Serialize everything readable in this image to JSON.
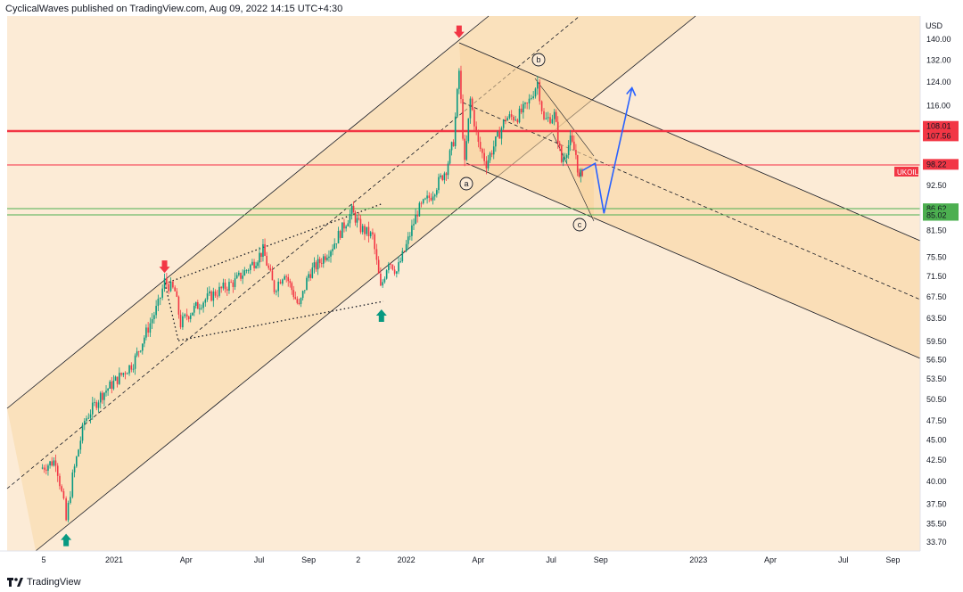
{
  "header": {
    "publisher_line": "CyclicalWaves published on TradingView.com, Aug 09, 2022 14:15 UTC+4:30"
  },
  "footer": {
    "brand": "TradingView",
    "logo_icon": "tradingview-logo-icon"
  },
  "colors": {
    "background": "#fcebd6",
    "channel_fill": "#f8d49e",
    "red_level": "#f23645",
    "light_red_level": "#f7525f",
    "green_level": "#4caf50",
    "projection_arrow": "#2962ff",
    "marker_up": "#089981",
    "marker_down": "#f23645",
    "candle_up": "#089981",
    "candle_down": "#f23645"
  },
  "chart_data": {
    "type": "candlestick",
    "title": "",
    "currency": "USD",
    "y_scale": "log",
    "ylim": [
      33.7,
      140.0
    ],
    "x_tick_labels": [
      "5",
      "2021",
      "Apr",
      "Jul",
      "Sep",
      "2",
      "2022",
      "Apr",
      "Jul",
      "Sep",
      "2023",
      "Apr",
      "Jul",
      "Sep"
    ],
    "y_tick_labels": [
      "140.00",
      "132.00",
      "124.00",
      "116.00",
      "108.01",
      "107.56",
      "98.22",
      "92.50",
      "86.62",
      "85.02",
      "81.50",
      "75.50",
      "71.50",
      "67.50",
      "63.50",
      "59.50",
      "56.50",
      "53.50",
      "50.50",
      "47.50",
      "45.00",
      "42.50",
      "40.00",
      "37.50",
      "35.50",
      "33.70"
    ],
    "last_price_label": "UKOIL",
    "price_levels": [
      {
        "label": "108.01",
        "value": 108.01,
        "color": "#f23645"
      },
      {
        "label": "107.56",
        "value": 107.56,
        "color": "#f23645"
      },
      {
        "label": "98.22",
        "value": 98.22,
        "color": "#f23645"
      },
      {
        "label": "86.62",
        "value": 86.62,
        "color": "#4caf50"
      },
      {
        "label": "85.02",
        "value": 85.02,
        "color": "#4caf50"
      }
    ],
    "wave_labels": [
      "a",
      "b",
      "c"
    ],
    "price_path": [
      [
        "2020-10-01",
        41.5
      ],
      [
        "2020-10-20",
        42.5
      ],
      [
        "2020-10-30",
        37.5
      ],
      [
        "2020-11-02",
        35.8
      ],
      [
        "2020-11-10",
        40.5
      ],
      [
        "2020-11-25",
        47.5
      ],
      [
        "2020-12-15",
        51.0
      ],
      [
        "2021-01-05",
        53.5
      ],
      [
        "2021-01-25",
        56.0
      ],
      [
        "2021-02-10",
        61.0
      ],
      [
        "2021-02-25",
        66.0
      ],
      [
        "2021-03-05",
        70.5
      ],
      [
        "2021-03-18",
        68.5
      ],
      [
        "2021-03-25",
        62.5
      ],
      [
        "2021-04-02",
        64.0
      ],
      [
        "2021-04-20",
        66.5
      ],
      [
        "2021-05-10",
        68.5
      ],
      [
        "2021-06-01",
        70.5
      ],
      [
        "2021-06-25",
        74.5
      ],
      [
        "2021-07-06",
        77.0
      ],
      [
        "2021-07-20",
        69.0
      ],
      [
        "2021-08-02",
        72.5
      ],
      [
        "2021-08-20",
        65.5
      ],
      [
        "2021-09-01",
        72.0
      ],
      [
        "2021-09-15",
        74.5
      ],
      [
        "2021-10-01",
        78.0
      ],
      [
        "2021-10-25",
        86.0
      ],
      [
        "2021-11-05",
        82.0
      ],
      [
        "2021-11-20",
        80.0
      ],
      [
        "2021-11-30",
        69.0
      ],
      [
        "2021-12-10",
        75.0
      ],
      [
        "2021-12-20",
        72.5
      ],
      [
        "2022-01-01",
        78.0
      ],
      [
        "2022-01-15",
        86.0
      ],
      [
        "2022-02-01",
        90.0
      ],
      [
        "2022-02-20",
        97.0
      ],
      [
        "2022-03-01",
        105.0
      ],
      [
        "2022-03-08",
        128.0
      ],
      [
        "2022-03-15",
        98.0
      ],
      [
        "2022-03-22",
        118.0
      ],
      [
        "2022-04-01",
        104.0
      ],
      [
        "2022-04-11",
        98.5
      ],
      [
        "2022-04-25",
        106.0
      ],
      [
        "2022-05-05",
        112.0
      ],
      [
        "2022-05-20",
        112.5
      ],
      [
        "2022-06-01",
        116.0
      ],
      [
        "2022-06-14",
        124.0
      ],
      [
        "2022-06-22",
        111.0
      ],
      [
        "2022-07-05",
        113.0
      ],
      [
        "2022-07-14",
        99.0
      ],
      [
        "2022-07-25",
        105.0
      ],
      [
        "2022-08-01",
        101.0
      ],
      [
        "2022-08-05",
        94.0
      ],
      [
        "2022-08-09",
        96.5
      ]
    ],
    "annotations": [
      {
        "type": "up-arrow",
        "date": "2020-11-02",
        "value": 33.9
      },
      {
        "type": "down-arrow",
        "date": "2021-03-05",
        "value": 73.5
      },
      {
        "type": "up-arrow",
        "date": "2021-12-01",
        "value": 64.0
      },
      {
        "type": "down-arrow",
        "date": "2022-03-08",
        "value": 143.0
      }
    ],
    "projection": [
      [
        "2022-08-09",
        96.5
      ],
      [
        "2022-08-25",
        98.5
      ],
      [
        "2022-09-05",
        85.5
      ],
      [
        "2022-10-10",
        122.0
      ]
    ]
  }
}
